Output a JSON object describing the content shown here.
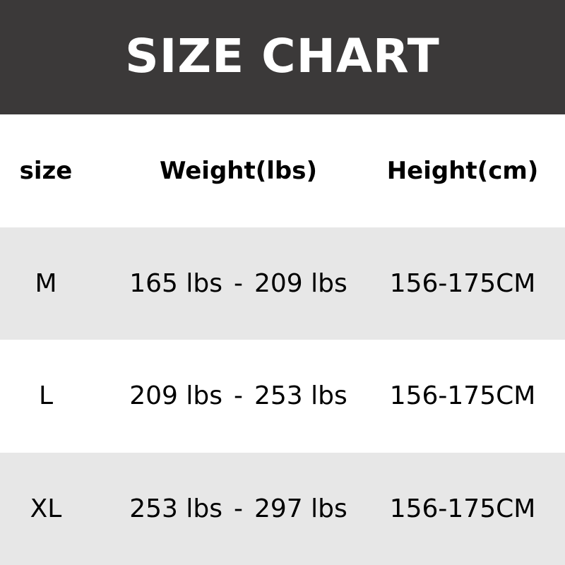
{
  "title": "SIZE CHART",
  "headers": [
    "size",
    "Weight(lbs)",
    "Height(cm)"
  ],
  "rows": [
    {
      "size": "M",
      "weight_min": "165 lbs",
      "weight_max": "209 lbs",
      "height": "156-175CM"
    },
    {
      "size": "L",
      "weight_min": "209 lbs",
      "weight_max": "253 lbs",
      "height": "156-175CM"
    },
    {
      "size": "XL",
      "weight_min": "253 lbs",
      "weight_max": "297 lbs",
      "height": "156-175CM"
    }
  ],
  "separator": "-",
  "colors": {
    "header_bg": "#3b3939",
    "stripe": "#e7e7e7",
    "title_text": "#ffffff"
  }
}
